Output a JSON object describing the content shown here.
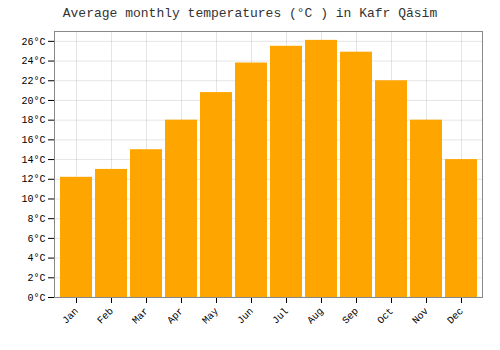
{
  "chart_data": {
    "type": "bar",
    "title": "Average monthly temperatures (°C ) in Kafr Qāsim",
    "categories": [
      "Jan",
      "Feb",
      "Mar",
      "Apr",
      "May",
      "Jun",
      "Jul",
      "Aug",
      "Sep",
      "Oct",
      "Nov",
      "Dec"
    ],
    "values": [
      12.2,
      13.0,
      15.0,
      18.0,
      20.8,
      23.8,
      25.5,
      26.1,
      24.9,
      22.0,
      18.0,
      14.0
    ],
    "color": "#FFA500",
    "ylim": [
      0,
      27
    ],
    "yticks": [
      {
        "value": 0,
        "label": "0°C"
      },
      {
        "value": 2,
        "label": "2°C"
      },
      {
        "value": 4,
        "label": "4°C"
      },
      {
        "value": 6,
        "label": "6°C"
      },
      {
        "value": 8,
        "label": "8°C"
      },
      {
        "value": 10,
        "label": "10°C"
      },
      {
        "value": 12,
        "label": "12°C"
      },
      {
        "value": 14,
        "label": "14°C"
      },
      {
        "value": 16,
        "label": "16°C"
      },
      {
        "value": 18,
        "label": "18°C"
      },
      {
        "value": 20,
        "label": "20°C"
      },
      {
        "value": 22,
        "label": "22°C"
      },
      {
        "value": 24,
        "label": "24°C"
      },
      {
        "value": 26,
        "label": "26°C"
      }
    ],
    "grid": true
  }
}
